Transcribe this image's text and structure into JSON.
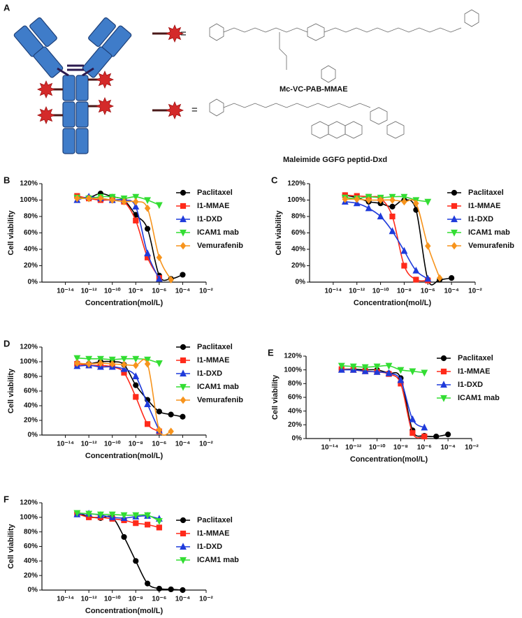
{
  "figure_a": {
    "panel": "A",
    "equals": [
      "=",
      "="
    ],
    "linker_1": "Mc-VC-PAB-MMAE",
    "linker_2": "Maleimide GGFG peptid-Dxd"
  },
  "chart_data": [
    {
      "type": "line",
      "panel": "B",
      "x_label": "Concentration(mol/L)",
      "y_label": "Cell viability",
      "log_x": true,
      "xlim": [
        1e-16,
        0.01
      ],
      "xticks": [
        {
          "value": 1e-14,
          "label": "10⁻¹⁴"
        },
        {
          "value": 1e-12,
          "label": "10⁻¹²"
        },
        {
          "value": 1e-10,
          "label": "10⁻¹⁰"
        },
        {
          "value": 1e-08,
          "label": "10⁻⁸"
        },
        {
          "value": 1e-06,
          "label": "10⁻⁶"
        },
        {
          "value": 0.0001,
          "label": "10⁻⁴"
        },
        {
          "value": 0.01,
          "label": "10⁻²"
        }
      ],
      "ylim": [
        0,
        120
      ],
      "yticks": [
        {
          "value": 0,
          "label": "0%"
        },
        {
          "value": 20,
          "label": "20%"
        },
        {
          "value": 40,
          "label": "40%"
        },
        {
          "value": 60,
          "label": "60%"
        },
        {
          "value": 80,
          "label": "80%"
        },
        {
          "value": 100,
          "label": "100%"
        },
        {
          "value": 120,
          "label": "120%"
        }
      ],
      "series": [
        {
          "name": "Paclitaxel",
          "color": "#000000",
          "marker": "circle",
          "x": [
            1e-13,
            1e-12,
            1e-11,
            1e-10,
            1e-09,
            1e-08,
            1e-07,
            1e-06,
            1e-05,
            0.0001
          ],
          "values": [
            104,
            103,
            108,
            104,
            100,
            82,
            65,
            8,
            4,
            9
          ]
        },
        {
          "name": "I1-MMAE",
          "color": "#ff2a1a",
          "marker": "square",
          "x": [
            1e-13,
            1e-12,
            1e-11,
            1e-10,
            1e-09,
            1e-08,
            1e-07,
            1e-06
          ],
          "values": [
            105,
            102,
            100,
            100,
            98,
            75,
            30,
            5
          ]
        },
        {
          "name": "I1-DXD",
          "color": "#1f3bdb",
          "marker": "triangle-up",
          "x": [
            1e-13,
            1e-12,
            1e-11,
            1e-10,
            1e-09,
            1e-08,
            1e-07,
            1e-06
          ],
          "values": [
            100,
            104,
            102,
            100,
            100,
            92,
            35,
            4
          ]
        },
        {
          "name": "ICAM1 mab",
          "color": "#33dd33",
          "marker": "triangle-down",
          "x": [
            1e-13,
            1e-12,
            1e-11,
            1e-10,
            1e-09,
            1e-08,
            1e-07,
            1e-06
          ],
          "values": [
            103,
            102,
            104,
            104,
            102,
            104,
            100,
            94
          ]
        },
        {
          "name": "Vemurafenib",
          "color": "#f7941d",
          "marker": "diamond",
          "x": [
            1e-13,
            1e-12,
            1e-11,
            1e-10,
            1e-09,
            1e-08,
            1e-07,
            1e-06,
            1e-05
          ],
          "values": [
            102,
            102,
            102,
            100,
            98,
            98,
            90,
            30,
            3
          ]
        }
      ]
    },
    {
      "type": "line",
      "panel": "C",
      "x_label": "Concentration(mol/L)",
      "y_label": "Cell viability",
      "log_x": true,
      "xlim": [
        1e-16,
        0.01
      ],
      "xticks": [
        {
          "value": 1e-14,
          "label": "10⁻¹⁴"
        },
        {
          "value": 1e-12,
          "label": "10⁻¹²"
        },
        {
          "value": 1e-10,
          "label": "10⁻¹⁰"
        },
        {
          "value": 1e-08,
          "label": "10⁻⁸"
        },
        {
          "value": 1e-06,
          "label": "10⁻⁶"
        },
        {
          "value": 0.0001,
          "label": "10⁻⁴"
        },
        {
          "value": 0.01,
          "label": "10⁻²"
        }
      ],
      "ylim": [
        0,
        120
      ],
      "yticks": [
        {
          "value": 0,
          "label": "0%"
        },
        {
          "value": 20,
          "label": "20%"
        },
        {
          "value": 40,
          "label": "40%"
        },
        {
          "value": 60,
          "label": "60%"
        },
        {
          "value": 80,
          "label": "80%"
        },
        {
          "value": 100,
          "label": "100%"
        },
        {
          "value": 120,
          "label": "120%"
        }
      ],
      "series": [
        {
          "name": "Paclitaxel",
          "color": "#000000",
          "marker": "circle",
          "x": [
            1e-13,
            1e-12,
            1e-11,
            1e-10,
            1e-09,
            1e-08,
            1e-07,
            1e-06,
            1e-05,
            0.0001
          ],
          "values": [
            106,
            103,
            98,
            96,
            92,
            100,
            88,
            3,
            3,
            5
          ]
        },
        {
          "name": "I1-MMAE",
          "color": "#ff2a1a",
          "marker": "square",
          "x": [
            1e-13,
            1e-12,
            1e-11,
            1e-10,
            1e-09,
            1e-08,
            1e-07,
            1e-06
          ],
          "values": [
            106,
            105,
            104,
            102,
            80,
            20,
            3,
            2
          ]
        },
        {
          "name": "I1-DXD",
          "color": "#1f3bdb",
          "marker": "triangle-up",
          "x": [
            1e-13,
            1e-12,
            1e-11,
            1e-10,
            1e-09,
            1e-08,
            1e-07,
            1e-06
          ],
          "values": [
            98,
            96,
            90,
            80,
            62,
            38,
            14,
            4
          ]
        },
        {
          "name": "ICAM1 mab",
          "color": "#33dd33",
          "marker": "triangle-down",
          "x": [
            1e-13,
            1e-12,
            1e-11,
            1e-10,
            1e-09,
            1e-08,
            1e-07,
            1e-06
          ],
          "values": [
            103,
            102,
            104,
            103,
            104,
            104,
            100,
            98
          ]
        },
        {
          "name": "Vemurafenib",
          "color": "#f7941d",
          "marker": "diamond",
          "x": [
            1e-13,
            1e-12,
            1e-11,
            1e-10,
            1e-09,
            1e-08,
            1e-07,
            1e-06,
            1e-05
          ],
          "values": [
            101,
            101,
            100,
            100,
            100,
            98,
            96,
            44,
            5
          ]
        }
      ]
    },
    {
      "type": "line",
      "panel": "D",
      "x_label": "Concentration(mol/L)",
      "y_label": "Cell viability",
      "log_x": true,
      "xlim": [
        1e-16,
        0.01
      ],
      "xticks": [
        {
          "value": 1e-14,
          "label": "10⁻¹⁴"
        },
        {
          "value": 1e-12,
          "label": "10⁻¹²"
        },
        {
          "value": 1e-10,
          "label": "10⁻¹⁰"
        },
        {
          "value": 1e-08,
          "label": "10⁻⁸"
        },
        {
          "value": 1e-06,
          "label": "10⁻⁶"
        },
        {
          "value": 0.0001,
          "label": "10⁻⁴"
        },
        {
          "value": 0.01,
          "label": "10⁻²"
        }
      ],
      "ylim": [
        0,
        120
      ],
      "yticks": [
        {
          "value": 0,
          "label": "0%"
        },
        {
          "value": 20,
          "label": "20%"
        },
        {
          "value": 40,
          "label": "40%"
        },
        {
          "value": 60,
          "label": "60%"
        },
        {
          "value": 80,
          "label": "80%"
        },
        {
          "value": 100,
          "label": "100%"
        },
        {
          "value": 120,
          "label": "120%"
        }
      ],
      "series": [
        {
          "name": "Paclitaxel",
          "color": "#000000",
          "marker": "circle",
          "x": [
            1e-13,
            1e-12,
            1e-11,
            1e-10,
            1e-09,
            1e-08,
            1e-07,
            1e-06,
            1e-05,
            0.0001
          ],
          "values": [
            98,
            97,
            100,
            100,
            96,
            68,
            48,
            32,
            28,
            25
          ]
        },
        {
          "name": "I1-MMAE",
          "color": "#ff2a1a",
          "marker": "square",
          "x": [
            1e-13,
            1e-12,
            1e-11,
            1e-10,
            1e-09,
            1e-08,
            1e-07,
            1e-06
          ],
          "values": [
            97,
            95,
            95,
            93,
            85,
            52,
            15,
            5
          ]
        },
        {
          "name": "I1-DXD",
          "color": "#1f3bdb",
          "marker": "triangle-up",
          "x": [
            1e-13,
            1e-12,
            1e-11,
            1e-10,
            1e-09,
            1e-08,
            1e-07,
            1e-06
          ],
          "values": [
            94,
            95,
            93,
            93,
            90,
            80,
            42,
            6
          ]
        },
        {
          "name": "ICAM1 mab",
          "color": "#33dd33",
          "marker": "triangle-down",
          "x": [
            1e-13,
            1e-12,
            1e-11,
            1e-10,
            1e-09,
            1e-08,
            1e-07,
            1e-06
          ],
          "values": [
            105,
            104,
            104,
            103,
            104,
            104,
            103,
            98
          ]
        },
        {
          "name": "Vemurafenib",
          "color": "#f7941d",
          "marker": "diamond",
          "x": [
            1e-13,
            1e-12,
            1e-11,
            1e-10,
            1e-09,
            1e-08,
            1e-07,
            1e-06,
            1e-05
          ],
          "values": [
            98,
            97,
            98,
            97,
            96,
            95,
            97,
            7,
            5
          ]
        }
      ]
    },
    {
      "type": "line",
      "panel": "E",
      "x_label": "Concentration(mol/L)",
      "y_label": "Cell viability",
      "log_x": true,
      "xlim": [
        1e-16,
        0.01
      ],
      "xticks": [
        {
          "value": 1e-14,
          "label": "10⁻¹⁴"
        },
        {
          "value": 1e-12,
          "label": "10⁻¹²"
        },
        {
          "value": 1e-10,
          "label": "10⁻¹⁰"
        },
        {
          "value": 1e-08,
          "label": "10⁻⁸"
        },
        {
          "value": 1e-06,
          "label": "10⁻⁶"
        },
        {
          "value": 0.0001,
          "label": "10⁻⁴"
        },
        {
          "value": 0.01,
          "label": "10⁻²"
        }
      ],
      "ylim": [
        0,
        120
      ],
      "yticks": [
        {
          "value": 0,
          "label": "0%"
        },
        {
          "value": 20,
          "label": "20%"
        },
        {
          "value": 40,
          "label": "40%"
        },
        {
          "value": 60,
          "label": "60%"
        },
        {
          "value": 80,
          "label": "80%"
        },
        {
          "value": 100,
          "label": "100%"
        },
        {
          "value": 120,
          "label": "120%"
        }
      ],
      "series": [
        {
          "name": "Paclitaxel",
          "color": "#000000",
          "marker": "circle",
          "x": [
            1e-13,
            1e-12,
            1e-11,
            1e-10,
            1e-09,
            1e-08,
            1e-07,
            1e-06,
            1e-05,
            0.0001
          ],
          "values": [
            101,
            101,
            100,
            100,
            95,
            88,
            12,
            4,
            3,
            6
          ]
        },
        {
          "name": "I1-MMAE",
          "color": "#ff2a1a",
          "marker": "square",
          "x": [
            1e-13,
            1e-12,
            1e-11,
            1e-10,
            1e-09,
            1e-08,
            1e-07,
            1e-06
          ],
          "values": [
            101,
            100,
            98,
            97,
            94,
            80,
            8,
            3
          ]
        },
        {
          "name": "I1-DXD",
          "color": "#1f3bdb",
          "marker": "triangle-up",
          "x": [
            1e-13,
            1e-12,
            1e-11,
            1e-10,
            1e-09,
            1e-08,
            1e-07,
            1e-06
          ],
          "values": [
            100,
            100,
            98,
            97,
            95,
            85,
            28,
            16
          ]
        },
        {
          "name": "ICAM1 mab",
          "color": "#33dd33",
          "marker": "triangle-down",
          "x": [
            1e-13,
            1e-12,
            1e-11,
            1e-10,
            1e-09,
            1e-08,
            1e-07,
            1e-06
          ],
          "values": [
            106,
            105,
            104,
            105,
            106,
            100,
            98,
            96
          ]
        }
      ]
    },
    {
      "type": "line",
      "panel": "F",
      "x_label": "Concentration(mol/L)",
      "y_label": "Cell viability",
      "log_x": true,
      "xlim": [
        1e-16,
        0.01
      ],
      "xticks": [
        {
          "value": 1e-14,
          "label": "10⁻¹⁴"
        },
        {
          "value": 1e-12,
          "label": "10⁻¹²"
        },
        {
          "value": 1e-10,
          "label": "10⁻¹⁰"
        },
        {
          "value": 1e-08,
          "label": "10⁻⁸"
        },
        {
          "value": 1e-06,
          "label": "10⁻⁶"
        },
        {
          "value": 0.0001,
          "label": "10⁻⁴"
        },
        {
          "value": 0.01,
          "label": "10⁻²"
        }
      ],
      "ylim": [
        0,
        120
      ],
      "yticks": [
        {
          "value": 0,
          "label": "0%"
        },
        {
          "value": 20,
          "label": "20%"
        },
        {
          "value": 40,
          "label": "40%"
        },
        {
          "value": 60,
          "label": "60%"
        },
        {
          "value": 80,
          "label": "80%"
        },
        {
          "value": 100,
          "label": "100%"
        },
        {
          "value": 120,
          "label": "120%"
        }
      ],
      "series": [
        {
          "name": "Paclitaxel",
          "color": "#000000",
          "marker": "circle",
          "x": [
            1e-13,
            1e-12,
            1e-11,
            1e-10,
            1e-09,
            1e-08,
            1e-07,
            1e-06,
            1e-05,
            0.0001
          ],
          "values": [
            106,
            101,
            99,
            100,
            73,
            40,
            9,
            2,
            1,
            0
          ]
        },
        {
          "name": "I1-MMAE",
          "color": "#ff2a1a",
          "marker": "square",
          "x": [
            1e-13,
            1e-12,
            1e-11,
            1e-10,
            1e-09,
            1e-08,
            1e-07,
            1e-06
          ],
          "values": [
            105,
            100,
            100,
            98,
            96,
            92,
            90,
            86
          ]
        },
        {
          "name": "I1-DXD",
          "color": "#1f3bdb",
          "marker": "triangle-up",
          "x": [
            1e-13,
            1e-12,
            1e-11,
            1e-10,
            1e-09,
            1e-08,
            1e-07,
            1e-06
          ],
          "values": [
            104,
            105,
            103,
            100,
            99,
            101,
            102,
            98
          ]
        },
        {
          "name": "ICAM1 mab",
          "color": "#33dd33",
          "marker": "triangle-down",
          "x": [
            1e-13,
            1e-12,
            1e-11,
            1e-10,
            1e-09,
            1e-08,
            1e-07,
            1e-06
          ],
          "values": [
            106,
            105,
            104,
            104,
            103,
            103,
            103,
            95
          ]
        }
      ]
    }
  ]
}
